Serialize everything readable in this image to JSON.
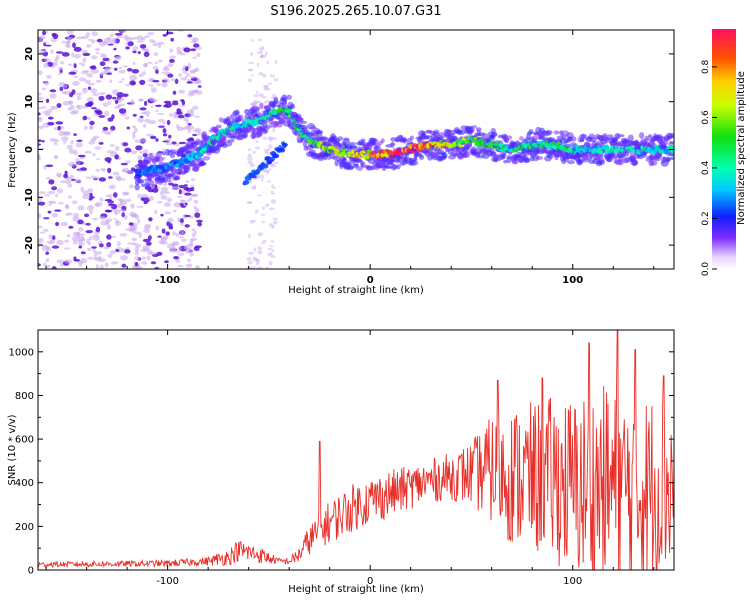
{
  "title": "S196.2025.265.10.07.G31",
  "colors": {
    "background": "#ffffff",
    "axis": "#000000",
    "snr_line": "#e8302a",
    "scatter_light": "#c9a6ef",
    "scatter_dark": "#5a12d8"
  },
  "chart_data": [
    {
      "type": "heatmap",
      "title": "",
      "xlabel": "Height of straight line (km)",
      "ylabel": "Frequency (Hz)",
      "xlim": [
        -164,
        150
      ],
      "ylim": [
        -25,
        25
      ],
      "xticks": [
        -100,
        0,
        100
      ],
      "yticks": [
        -20,
        -10,
        0,
        10,
        20
      ],
      "xtick_labels": [
        "-100",
        "0",
        "100"
      ],
      "ytick_labels": [
        "-20",
        "-10",
        "0",
        "10",
        "20"
      ],
      "ridge": {
        "x": [
          -115,
          -105,
          -95,
          -85,
          -75,
          -65,
          -55,
          -45,
          -40,
          -35,
          -30,
          -20,
          -10,
          0,
          10,
          20,
          30,
          40,
          50,
          60,
          70,
          80,
          90,
          100,
          110,
          120,
          130,
          140,
          150
        ],
        "y": [
          -5,
          -4,
          -3,
          -1,
          3,
          5,
          6,
          8,
          8,
          4,
          2,
          0,
          -1,
          -1,
          -1,
          0,
          1,
          1,
          2,
          1,
          0,
          1,
          1,
          0,
          0,
          0,
          0,
          0,
          0
        ],
        "amplitude": [
          0.25,
          0.3,
          0.3,
          0.35,
          0.45,
          0.4,
          0.4,
          0.55,
          0.55,
          0.5,
          0.5,
          0.7,
          0.75,
          0.8,
          0.9,
          0.95,
          0.9,
          0.7,
          0.6,
          0.5,
          0.45,
          0.45,
          0.5,
          0.45,
          0.4,
          0.4,
          0.4,
          0.4,
          0.4
        ]
      },
      "secondary_branch": {
        "x": [
          -62,
          -57,
          -52,
          -47,
          -42
        ],
        "y": [
          -7,
          -5,
          -3,
          -1,
          1
        ]
      },
      "colorbar": {
        "label": "Normalized spectral amplitude",
        "range": [
          0,
          0.95
        ],
        "ticks": [
          0.0,
          0.2,
          0.4,
          0.6,
          0.8
        ],
        "tick_labels": [
          "0.0",
          "0.2",
          "0.4",
          "0.6",
          "0.8"
        ]
      }
    },
    {
      "type": "line",
      "title": "",
      "xlabel": "Height of straight line (km)",
      "ylabel": "SNR (10 * v/v)",
      "xlim": [
        -164,
        150
      ],
      "ylim": [
        0,
        1100
      ],
      "xticks": [
        -100,
        0,
        100
      ],
      "yticks": [
        0,
        200,
        400,
        600,
        800,
        1000
      ],
      "xtick_labels": [
        "-100",
        "0",
        "100"
      ],
      "ytick_labels": [
        "0",
        "200",
        "400",
        "600",
        "800",
        "1000"
      ],
      "series": [
        {
          "name": "SNR",
          "envelope_x": [
            -164,
            -100,
            -80,
            -70,
            -65,
            -55,
            -45,
            -40,
            -35,
            -30,
            -25,
            -20,
            -10,
            0,
            10,
            20,
            30,
            40,
            50,
            60,
            70,
            80,
            90,
            100,
            110,
            120,
            130,
            140,
            150
          ],
          "envelope_mid": [
            25,
            30,
            40,
            60,
            90,
            70,
            40,
            40,
            70,
            140,
            180,
            220,
            280,
            320,
            350,
            380,
            410,
            430,
            440,
            460,
            430,
            420,
            420,
            380,
            380,
            380,
            360,
            380,
            380
          ],
          "envelope_spread": [
            12,
            15,
            20,
            40,
            50,
            40,
            15,
            15,
            40,
            70,
            80,
            100,
            110,
            110,
            110,
            100,
            100,
            110,
            150,
            250,
            320,
            350,
            380,
            420,
            460,
            480,
            440,
            440,
            400
          ],
          "peaks": [
            {
              "x": -25,
              "y": 590
            },
            {
              "x": 63,
              "y": 870
            },
            {
              "x": 85,
              "y": 880
            },
            {
              "x": 108,
              "y": 1040
            },
            {
              "x": 122,
              "y": 1100
            },
            {
              "x": 131,
              "y": 1010
            },
            {
              "x": 145,
              "y": 890
            }
          ]
        }
      ]
    }
  ]
}
